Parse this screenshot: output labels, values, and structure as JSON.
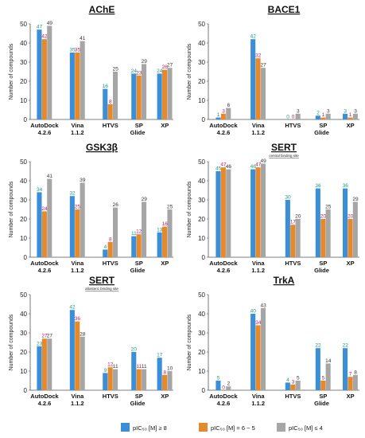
{
  "legend": {
    "items": [
      {
        "label": "pIC₅₀ [M] ≥ 8",
        "color": "#3a8fd8"
      },
      {
        "label": "pIC₅₀ [M] = 6 − 5",
        "color": "#e5892a"
      },
      {
        "label": "pIC₅₀ [M] ≤ 4",
        "color": "#a6a6a6"
      }
    ]
  },
  "label_colors": [
    "#1a9a8a",
    "#c2185b",
    "#333333"
  ],
  "chart_data": [
    {
      "type": "bar",
      "title": "AChE",
      "subtitle": "",
      "ylabel": "Number of compounds",
      "ylim": [
        0,
        50
      ],
      "yticks": [
        0,
        10,
        20,
        30,
        40,
        50
      ],
      "categories": [
        "AutoDock\n4.2.6",
        "Vina\n1.1.2",
        "HTVS",
        "SP",
        "XP"
      ],
      "group_label": "Glide",
      "series": [
        {
          "name": "pIC₅₀ [M] ≥ 8",
          "values": [
            47,
            35,
            16,
            24,
            24
          ]
        },
        {
          "name": "pIC₅₀ [M] = 6 − 5",
          "values": [
            42,
            35,
            8,
            23,
            26
          ]
        },
        {
          "name": "pIC₅₀ [M] ≤ 4",
          "values": [
            49,
            41,
            25,
            29,
            27
          ]
        }
      ]
    },
    {
      "type": "bar",
      "title": "BACE1",
      "subtitle": "",
      "ylabel": "Number of compounds",
      "ylim": [
        0,
        50
      ],
      "yticks": [
        0,
        10,
        20,
        30,
        40,
        50
      ],
      "categories": [
        "AutoDock\n4.2.6",
        "Vina\n1.1.2",
        "HTVS",
        "SP",
        "XP"
      ],
      "group_label": "Glide",
      "series": [
        {
          "name": "pIC₅₀ [M] ≥ 8",
          "values": [
            1,
            42,
            0,
            2,
            3
          ]
        },
        {
          "name": "pIC₅₀ [M] = 6 − 5",
          "values": [
            3,
            32,
            0,
            1,
            1
          ]
        },
        {
          "name": "pIC₅₀ [M] ≤ 4",
          "values": [
            6,
            27,
            3,
            3,
            3
          ]
        }
      ]
    },
    {
      "type": "bar",
      "title": "GSK3β",
      "subtitle": "",
      "ylabel": "Number of compounds",
      "ylim": [
        0,
        50
      ],
      "yticks": [
        0,
        10,
        20,
        30,
        40,
        50
      ],
      "categories": [
        "AutoDock\n4.2.6",
        "Vina\n1.1.2",
        "HTVS",
        "SP",
        "XP"
      ],
      "group_label": "Glide",
      "series": [
        {
          "name": "pIC₅₀ [M] ≥ 8",
          "values": [
            34,
            32,
            4,
            11,
            13
          ]
        },
        {
          "name": "pIC₅₀ [M] = 6 − 5",
          "values": [
            24,
            25,
            8,
            12,
            16
          ]
        },
        {
          "name": "pIC₅₀ [M] ≤ 4",
          "values": [
            41,
            39,
            26,
            29,
            25
          ]
        }
      ]
    },
    {
      "type": "bar",
      "title": "SERT",
      "subtitle": "central binding site",
      "ylabel": "Number of compounds",
      "ylim": [
        0,
        50
      ],
      "yticks": [
        0,
        10,
        20,
        30,
        40,
        50
      ],
      "categories": [
        "AutoDock\n4.2.6",
        "Vina\n1.1.2",
        "HTVS",
        "SP",
        "XP"
      ],
      "group_label": "Glide",
      "series": [
        {
          "name": "pIC₅₀ [M] ≥ 8",
          "values": [
            45,
            46,
            30,
            36,
            36
          ]
        },
        {
          "name": "pIC₅₀ [M] = 6 − 5",
          "values": [
            47,
            47,
            17,
            20,
            20
          ]
        },
        {
          "name": "pIC₅₀ [M] ≤ 4",
          "values": [
            46,
            49,
            20,
            25,
            29
          ]
        }
      ]
    },
    {
      "type": "bar",
      "title": "SERT",
      "subtitle": "allosteric binding site",
      "ylabel": "Number of compounds",
      "ylim": [
        0,
        50
      ],
      "yticks": [
        0,
        10,
        20,
        30,
        40,
        50
      ],
      "categories": [
        "AutoDock\n4.2.6",
        "Vina\n1.1.2",
        "HTVS",
        "SP",
        "XP"
      ],
      "group_label": "Glide",
      "series": [
        {
          "name": "pIC₅₀ [M] ≥ 8",
          "values": [
            23,
            42,
            9,
            20,
            17
          ]
        },
        {
          "name": "pIC₅₀ [M] = 6 − 5",
          "values": [
            27,
            36,
            12,
            11,
            8
          ]
        },
        {
          "name": "pIC₅₀ [M] ≤ 4",
          "values": [
            27,
            28,
            11,
            11,
            10
          ]
        }
      ]
    },
    {
      "type": "bar",
      "title": "TrkA",
      "subtitle": "",
      "ylabel": "Number of compounds",
      "ylim": [
        0,
        50
      ],
      "yticks": [
        0,
        10,
        20,
        30,
        40,
        50
      ],
      "categories": [
        "AutoDock\n4.2.6",
        "Vina\n1.1.2",
        "HTVS",
        "SP",
        "XP"
      ],
      "group_label": "Glide",
      "series": [
        {
          "name": "pIC₅₀ [M] ≥ 8",
          "values": [
            5,
            40,
            4,
            22,
            22
          ]
        },
        {
          "name": "pIC₅₀ [M] = 6 − 5",
          "values": [
            0,
            34,
            3,
            5,
            7
          ]
        },
        {
          "name": "pIC₅₀ [M] ≤ 4",
          "values": [
            2,
            43,
            5,
            14,
            8
          ]
        }
      ]
    }
  ]
}
